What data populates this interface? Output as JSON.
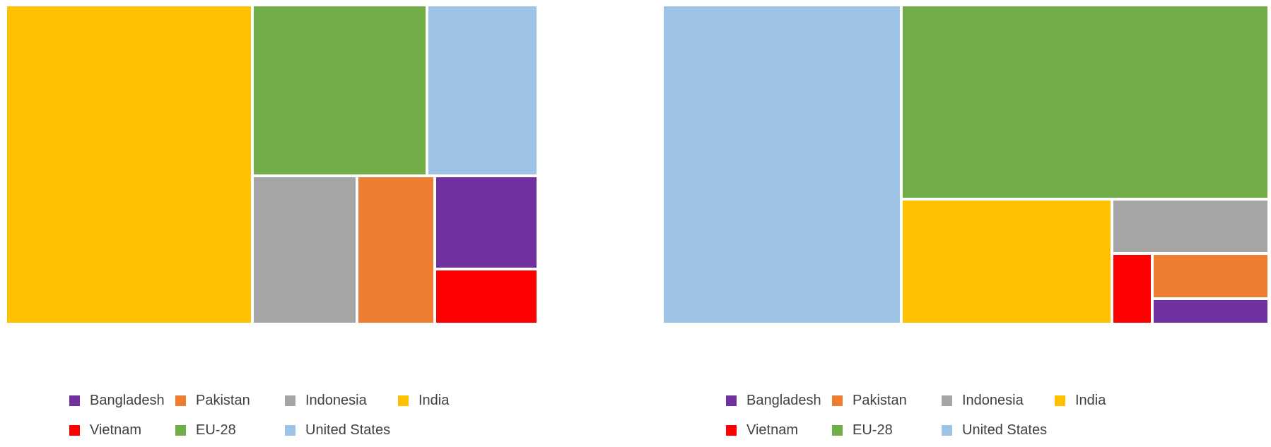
{
  "chart_data": [
    {
      "type": "treemap",
      "title": "",
      "categories": [
        "India",
        "EU-28",
        "United States",
        "Indonesia",
        "Pakistan",
        "Bangladesh",
        "Vietnam"
      ],
      "values": [
        35.0,
        14.0,
        9.0,
        8.5,
        6.0,
        5.5,
        2.0
      ],
      "colors": [
        "#FFC000",
        "#70AD47",
        "#9DC3E6",
        "#A5A5A5",
        "#ED7D31",
        "#7030A0",
        "#FF0000"
      ],
      "legend": {
        "position": "bottom",
        "entries": [
          {
            "label": "Bangladesh",
            "color": "#7030A0"
          },
          {
            "label": "Pakistan",
            "color": "#ED7D31"
          },
          {
            "label": "Indonesia",
            "color": "#A5A5A5"
          },
          {
            "label": "India",
            "color": "#FFC000"
          },
          {
            "label": "Vietnam",
            "color": "#FF0000"
          },
          {
            "label": "EU-28",
            "color": "#70AD47"
          },
          {
            "label": "United States",
            "color": "#9DC3E6"
          }
        ]
      }
    },
    {
      "type": "treemap",
      "title": "",
      "categories": [
        "United States",
        "EU-28",
        "India",
        "Indonesia",
        "Vietnam",
        "Pakistan",
        "Bangladesh"
      ],
      "values": [
        36.0,
        34.0,
        16.5,
        3.8,
        3.2,
        2.0,
        1.0
      ],
      "colors": [
        "#9DC3E6",
        "#70AD47",
        "#FFC000",
        "#A5A5A5",
        "#FF0000",
        "#ED7D31",
        "#7030A0"
      ],
      "legend": {
        "position": "bottom",
        "entries": [
          {
            "label": "Bangladesh",
            "color": "#7030A0"
          },
          {
            "label": "Pakistan",
            "color": "#ED7D31"
          },
          {
            "label": "Indonesia",
            "color": "#A5A5A5"
          },
          {
            "label": "India",
            "color": "#FFC000"
          },
          {
            "label": "Vietnam",
            "color": "#FF0000"
          },
          {
            "label": "EU-28",
            "color": "#70AD47"
          },
          {
            "label": "United States",
            "color": "#9DC3E6"
          }
        ]
      }
    }
  ]
}
